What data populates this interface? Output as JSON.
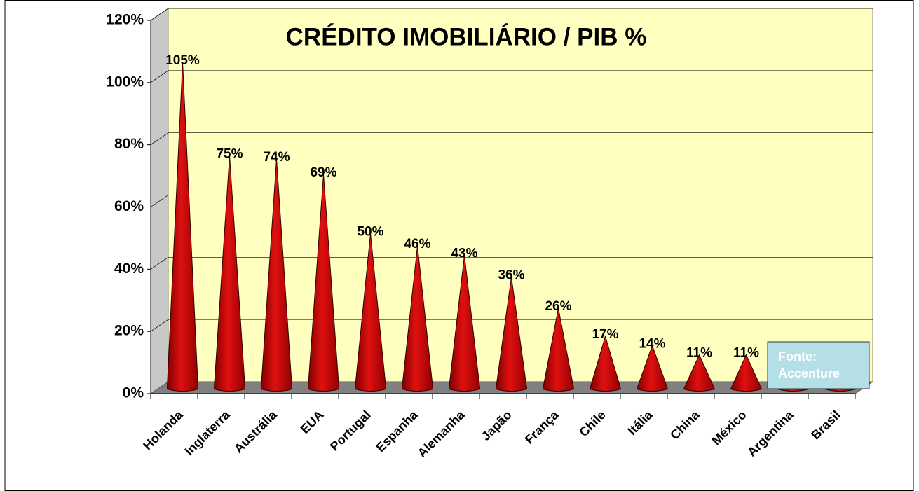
{
  "chart_data": {
    "type": "cone",
    "title": "CRÉDITO IMOBILIÁRIO / PIB %",
    "categories": [
      "Holanda",
      "Inglaterra",
      "Austrália",
      "EUA",
      "Portugal",
      "Espanha",
      "Alemanha",
      "Japão",
      "França",
      "Chile",
      "Itália",
      "China",
      "México",
      "Argentina",
      "Brasil"
    ],
    "values": [
      105,
      75,
      74,
      69,
      50,
      46,
      43,
      36,
      26,
      17,
      14,
      11,
      11,
      1,
      1
    ],
    "value_labels": [
      "105%",
      "75%",
      "74%",
      "69%",
      "50%",
      "46%",
      "43%",
      "36%",
      "26%",
      "17%",
      "14%",
      "11%",
      "11%",
      null,
      null
    ],
    "color": "#e01010",
    "ylim": [
      0,
      120
    ],
    "yticks": [
      {
        "value": 0,
        "label": "0%"
      },
      {
        "value": 20,
        "label": "20%"
      },
      {
        "value": 40,
        "label": "40%"
      },
      {
        "value": 60,
        "label": "60%"
      },
      {
        "value": 80,
        "label": "80%"
      },
      {
        "value": 100,
        "label": "100%"
      },
      {
        "value": 120,
        "label": "120%"
      }
    ],
    "grid": true,
    "annotation": [
      "Fonte:",
      "Accenture"
    ]
  }
}
